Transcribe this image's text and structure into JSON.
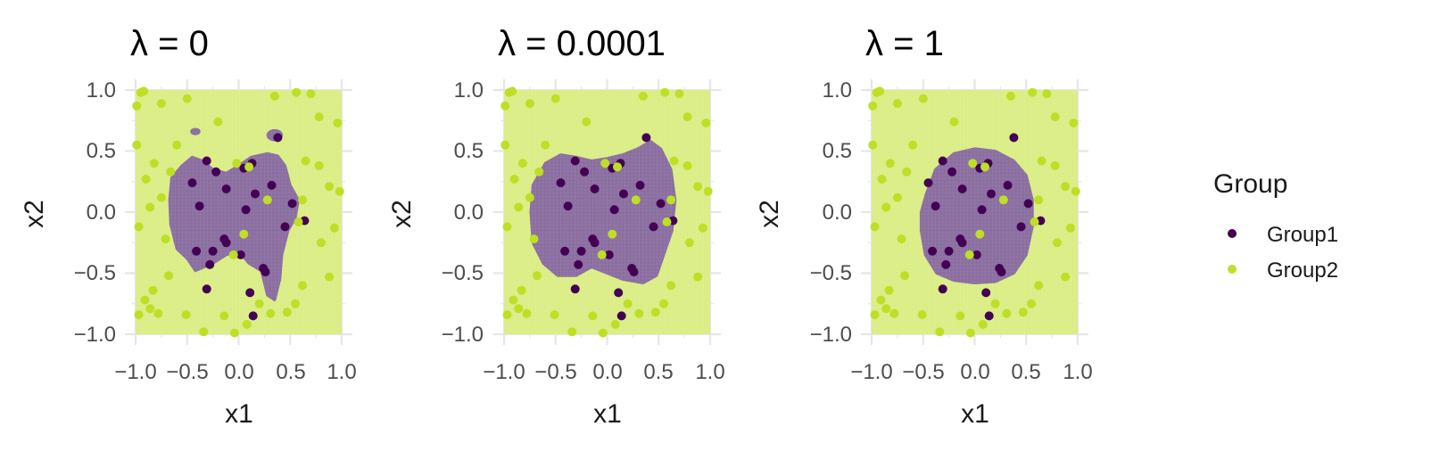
{
  "chart_data": {
    "type": "scatter",
    "legend": {
      "title": "Group",
      "entries": [
        {
          "label": "Group1",
          "color": "#440154"
        },
        {
          "label": "Group2",
          "color": "#bddf26"
        }
      ],
      "placement": "right"
    },
    "colors": {
      "group1": "#440154",
      "group2": "#bddf26",
      "region1": "#8a6ea0",
      "region2": "#dbed86",
      "grid": "#e6e6e6"
    },
    "panels": [
      {
        "title": "λ = 0",
        "xlabel": "x1",
        "ylabel": "x2"
      },
      {
        "title": "λ = 0.0001",
        "xlabel": "x1",
        "ylabel": "x2"
      },
      {
        "title": "λ = 1",
        "xlabel": "x1",
        "ylabel": "x2"
      }
    ],
    "xlim": [
      -1.0,
      1.0
    ],
    "ylim": [
      -1.0,
      1.0
    ],
    "x_ticks": [
      "−1.0",
      "−0.5",
      "0.0",
      "0.5",
      "1.0"
    ],
    "y_ticks": [
      "−1.0",
      "−0.5",
      "0.0",
      "0.5",
      "1.0"
    ],
    "grid": true,
    "series": [
      {
        "name": "Group1",
        "points": [
          [
            -0.31,
            0.42
          ],
          [
            -0.45,
            0.24
          ],
          [
            -0.22,
            0.33
          ],
          [
            -0.12,
            0.19
          ],
          [
            -0.38,
            0.05
          ],
          [
            0.05,
            0.36
          ],
          [
            0.13,
            0.4
          ],
          [
            0.16,
            0.15
          ],
          [
            0.32,
            0.22
          ],
          [
            0.38,
            0.61
          ],
          [
            0.52,
            0.07
          ],
          [
            0.45,
            -0.12
          ],
          [
            0.64,
            -0.07
          ],
          [
            -0.41,
            -0.32
          ],
          [
            -0.25,
            -0.32
          ],
          [
            -0.14,
            -0.22
          ],
          [
            -0.12,
            -0.25
          ],
          [
            -0.28,
            -0.43
          ],
          [
            -0.31,
            -0.63
          ],
          [
            0.02,
            -0.35
          ],
          [
            0.24,
            -0.46
          ],
          [
            0.26,
            -0.49
          ],
          [
            0.11,
            -0.66
          ],
          [
            0.14,
            -0.85
          ],
          [
            0.07,
            0.02
          ]
        ]
      },
      {
        "name": "Group2",
        "points": [
          [
            -0.95,
            0.98
          ],
          [
            -0.92,
            0.99
          ],
          [
            -0.99,
            0.87
          ],
          [
            -0.75,
            0.89
          ],
          [
            -0.5,
            0.93
          ],
          [
            -0.2,
            0.74
          ],
          [
            0.35,
            0.95
          ],
          [
            0.56,
            0.98
          ],
          [
            0.7,
            0.97
          ],
          [
            0.78,
            0.78
          ],
          [
            0.96,
            0.73
          ],
          [
            0.65,
            0.42
          ],
          [
            0.78,
            0.38
          ],
          [
            0.88,
            0.21
          ],
          [
            0.98,
            0.17
          ],
          [
            0.62,
            0.1
          ],
          [
            0.58,
            -0.08
          ],
          [
            0.93,
            -0.13
          ],
          [
            0.8,
            -0.25
          ],
          [
            0.88,
            -0.53
          ],
          [
            0.62,
            -0.6
          ],
          [
            0.55,
            -0.75
          ],
          [
            0.47,
            -0.82
          ],
          [
            0.31,
            -0.83
          ],
          [
            0.2,
            -0.75
          ],
          [
            0.08,
            -0.92
          ],
          [
            -0.04,
            -0.99
          ],
          [
            -0.14,
            -0.85
          ],
          [
            -0.34,
            -0.98
          ],
          [
            -0.51,
            -0.84
          ],
          [
            -0.78,
            -0.83
          ],
          [
            -0.86,
            -0.79
          ],
          [
            -0.97,
            -0.84
          ],
          [
            -0.91,
            -0.72
          ],
          [
            -0.83,
            -0.64
          ],
          [
            -0.68,
            -0.52
          ],
          [
            -0.71,
            -0.22
          ],
          [
            -0.86,
            0.04
          ],
          [
            -0.97,
            -0.12
          ],
          [
            -0.75,
            0.12
          ],
          [
            -0.9,
            0.27
          ],
          [
            -0.66,
            0.33
          ],
          [
            -0.82,
            0.4
          ],
          [
            -0.99,
            0.55
          ],
          [
            -0.6,
            0.55
          ],
          [
            0.1,
            0.37
          ],
          [
            -0.02,
            0.4
          ],
          [
            0.28,
            0.1
          ],
          [
            -0.05,
            -0.35
          ],
          [
            0.05,
            -0.18
          ]
        ]
      }
    ],
    "regions": [
      {
        "class": "Group1",
        "polygon": [
          [
            -0.65,
            0.28
          ],
          [
            -0.55,
            0.38
          ],
          [
            -0.45,
            0.45
          ],
          [
            -0.35,
            0.42
          ],
          [
            -0.25,
            0.35
          ],
          [
            -0.12,
            0.32
          ],
          [
            0.0,
            0.38
          ],
          [
            0.12,
            0.45
          ],
          [
            0.28,
            0.48
          ],
          [
            0.38,
            0.46
          ],
          [
            0.45,
            0.38
          ],
          [
            0.5,
            0.22
          ],
          [
            0.58,
            0.1
          ],
          [
            0.55,
            -0.05
          ],
          [
            0.48,
            -0.15
          ],
          [
            0.42,
            -0.35
          ],
          [
            0.4,
            -0.55
          ],
          [
            0.35,
            -0.72
          ],
          [
            0.28,
            -0.68
          ],
          [
            0.22,
            -0.48
          ],
          [
            0.1,
            -0.42
          ],
          [
            0.0,
            -0.32
          ],
          [
            -0.12,
            -0.35
          ],
          [
            -0.25,
            -0.42
          ],
          [
            -0.42,
            -0.48
          ],
          [
            -0.5,
            -0.38
          ],
          [
            -0.6,
            -0.3
          ],
          [
            -0.66,
            -0.1
          ],
          [
            -0.67,
            0.1
          ]
        ]
      },
      {
        "class": "Group1",
        "polygon": [
          [
            -0.72,
            0.22
          ],
          [
            -0.6,
            0.4
          ],
          [
            -0.45,
            0.47
          ],
          [
            -0.3,
            0.45
          ],
          [
            -0.15,
            0.42
          ],
          [
            0.0,
            0.44
          ],
          [
            0.15,
            0.47
          ],
          [
            0.3,
            0.52
          ],
          [
            0.42,
            0.58
          ],
          [
            0.52,
            0.52
          ],
          [
            0.62,
            0.35
          ],
          [
            0.66,
            0.1
          ],
          [
            0.63,
            -0.15
          ],
          [
            0.55,
            -0.35
          ],
          [
            0.48,
            -0.52
          ],
          [
            0.35,
            -0.58
          ],
          [
            0.15,
            -0.55
          ],
          [
            0.0,
            -0.5
          ],
          [
            -0.15,
            -0.45
          ],
          [
            -0.3,
            -0.52
          ],
          [
            -0.48,
            -0.52
          ],
          [
            -0.62,
            -0.42
          ],
          [
            -0.72,
            -0.25
          ],
          [
            -0.74,
            0.0
          ]
        ]
      },
      {
        "class": "Group1",
        "polygon": [
          [
            -0.47,
            0.15
          ],
          [
            -0.38,
            0.35
          ],
          [
            -0.2,
            0.48
          ],
          [
            0.0,
            0.52
          ],
          [
            0.2,
            0.5
          ],
          [
            0.38,
            0.42
          ],
          [
            0.5,
            0.3
          ],
          [
            0.56,
            0.1
          ],
          [
            0.56,
            -0.12
          ],
          [
            0.5,
            -0.35
          ],
          [
            0.38,
            -0.5
          ],
          [
            0.2,
            -0.57
          ],
          [
            0.0,
            -0.58
          ],
          [
            -0.2,
            -0.56
          ],
          [
            -0.37,
            -0.5
          ],
          [
            -0.48,
            -0.35
          ],
          [
            -0.52,
            -0.15
          ],
          [
            -0.52,
            0.0
          ]
        ]
      }
    ],
    "islands": [
      {
        "panel": 0,
        "cx": 0.35,
        "cy": 0.63,
        "rx": 0.08,
        "ry": 0.05
      },
      {
        "panel": 0,
        "cx": -0.42,
        "cy": 0.66,
        "rx": 0.05,
        "ry": 0.03
      }
    ]
  }
}
